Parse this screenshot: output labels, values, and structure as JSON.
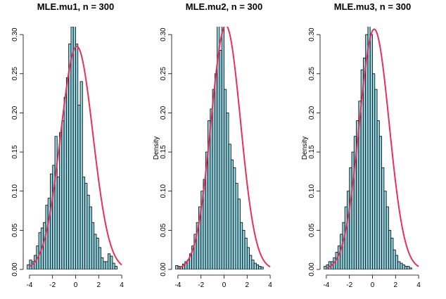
{
  "chart_data": [
    {
      "type": "bar",
      "title": "MLE.mu1, n = 300",
      "xlabel": "",
      "ylabel": "",
      "xlim": [
        -4.3,
        4.3
      ],
      "ylim": [
        0,
        0.31
      ],
      "x_ticks": [
        -4,
        -2,
        0,
        2,
        4
      ],
      "y_ticks": [
        0.0,
        0.05,
        0.1,
        0.15,
        0.2,
        0.25,
        0.3
      ],
      "y_tick_labels": [
        "0.00",
        "0.05",
        "0.10",
        "0.15",
        "0.20",
        "0.25",
        "0.30"
      ],
      "bin_start": -4.2,
      "bin_width": 0.2,
      "values": [
        0.006,
        0.012,
        0.01,
        0.018,
        0.03,
        0.047,
        0.053,
        0.06,
        0.082,
        0.091,
        0.122,
        0.133,
        0.17,
        0.118,
        0.175,
        0.19,
        0.22,
        0.245,
        0.288,
        0.31,
        0.318,
        0.288,
        0.21,
        0.24,
        0.118,
        0.11,
        0.095,
        0.08,
        0.06,
        0.045,
        0.04,
        0.028,
        0.015,
        0.01,
        0.01,
        0.02,
        0.017,
        0.008,
        0.004
      ],
      "density_curve": {
        "mean": 0.1,
        "sd": 1.4
      },
      "bar_color": "#8FD3E0",
      "curve_color": "#E8305B"
    },
    {
      "type": "bar",
      "title": "MLE.mu2, n = 300",
      "xlabel": "",
      "ylabel": "Density",
      "xlim": [
        -4.3,
        4.3
      ],
      "ylim": [
        0,
        0.31
      ],
      "x_ticks": [
        -4,
        -2,
        0,
        2,
        4
      ],
      "y_ticks": [
        0.0,
        0.05,
        0.1,
        0.15,
        0.2,
        0.25,
        0.3
      ],
      "y_tick_labels": [
        "0.00",
        "0.05",
        "0.10",
        "0.15",
        "0.20",
        "0.25",
        "0.30"
      ],
      "bin_start": -4.2,
      "bin_width": 0.2,
      "values": [
        0.005,
        0.004,
        0.003,
        0.007,
        0.01,
        0.012,
        0.02,
        0.03,
        0.045,
        0.06,
        0.08,
        0.1,
        0.115,
        0.15,
        0.19,
        0.205,
        0.23,
        0.25,
        0.32,
        0.28,
        0.33,
        0.23,
        0.2,
        0.16,
        0.14,
        0.13,
        0.11,
        0.09,
        0.06,
        0.05,
        0.04,
        0.028,
        0.018,
        0.012,
        0.008,
        0.006,
        0.004,
        0.003
      ],
      "density_curve": {
        "mean": 0.15,
        "sd": 1.28
      },
      "bar_color": "#8FD3E0",
      "curve_color": "#E8305B"
    },
    {
      "type": "bar",
      "title": "MLE.mu3, n = 300",
      "xlabel": "",
      "ylabel": "Density",
      "xlim": [
        -4.3,
        4.3
      ],
      "ylim": [
        0,
        0.31
      ],
      "x_ticks": [
        -4,
        -2,
        0,
        2,
        4
      ],
      "y_ticks": [
        0.0,
        0.05,
        0.1,
        0.15,
        0.2,
        0.25,
        0.3
      ],
      "y_tick_labels": [
        "0.00",
        "0.05",
        "0.10",
        "0.15",
        "0.20",
        "0.25",
        "0.30"
      ],
      "bin_start": -4.2,
      "bin_width": 0.2,
      "values": [
        0.004,
        0.006,
        0.01,
        0.01,
        0.015,
        0.022,
        0.03,
        0.045,
        0.06,
        0.08,
        0.1,
        0.13,
        0.15,
        0.17,
        0.19,
        0.215,
        0.255,
        0.27,
        0.3,
        0.32,
        0.3,
        0.25,
        0.23,
        0.19,
        0.17,
        0.13,
        0.1,
        0.08,
        0.05,
        0.04,
        0.025,
        0.018,
        0.01,
        0.008,
        0.006,
        0.004,
        0.004,
        0.002
      ],
      "density_curve": {
        "mean": 0.15,
        "sd": 1.3
      },
      "bar_color": "#8FD3E0",
      "curve_color": "#E8305B"
    }
  ]
}
